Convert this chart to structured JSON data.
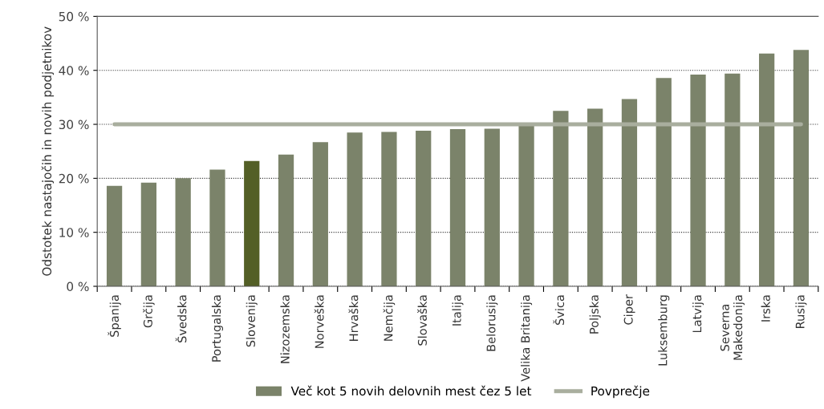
{
  "chart_data": {
    "type": "bar",
    "ylabel": "Odstotek nastajočih in novih podjetnikov",
    "categories": [
      "Španija",
      "Grčija",
      "Švedska",
      "Portugalska",
      "Slovenija",
      "Nizozemska",
      "Norveška",
      "Hrvaška",
      "Nemčija",
      "Slovaška",
      "Italija",
      "Belorusija",
      "Velika Britanija",
      "Švica",
      "Poljska",
      "Ciper",
      "Luksemburg",
      "Latvija",
      "Severna\nMakedonija",
      "Irska",
      "Rusija"
    ],
    "series": [
      {
        "name": "Več kot 5 novih delovnih mest čez 5 let",
        "color": "#7b836a",
        "colors": [
          "#7b836a",
          "#7b836a",
          "#7b836a",
          "#7b836a",
          "#535f26",
          "#7b836a",
          "#7b836a",
          "#7b836a",
          "#7b836a",
          "#7b836a",
          "#7b836a",
          "#7b836a",
          "#7b836a",
          "#7b836a",
          "#7b836a",
          "#7b836a",
          "#7b836a",
          "#7b836a",
          "#7b836a",
          "#7b836a",
          "#7b836a"
        ],
        "values": [
          18.6,
          19.2,
          20.0,
          21.6,
          23.2,
          24.4,
          26.7,
          28.5,
          28.6,
          28.8,
          29.1,
          29.2,
          29.7,
          32.5,
          32.9,
          34.7,
          38.6,
          39.2,
          39.4,
          43.1,
          43.8
        ]
      },
      {
        "name": "Povprečje",
        "type": "line",
        "color": "#a9ae9e",
        "values": [
          30,
          30,
          30,
          30,
          30,
          30,
          30,
          30,
          30,
          30,
          30,
          30,
          30,
          30,
          30,
          30,
          30,
          30,
          30,
          30,
          30
        ]
      }
    ],
    "ylim": [
      0,
      50
    ],
    "yticks": [
      {
        "value": 0,
        "label": "0 %"
      },
      {
        "value": 10,
        "label": "10 %"
      },
      {
        "value": 20,
        "label": "20 %"
      },
      {
        "value": 30,
        "label": "30 %"
      },
      {
        "value": 40,
        "label": "40 %"
      },
      {
        "value": 50,
        "label": "50 %"
      }
    ],
    "grid": "y",
    "legend": "bottom"
  }
}
